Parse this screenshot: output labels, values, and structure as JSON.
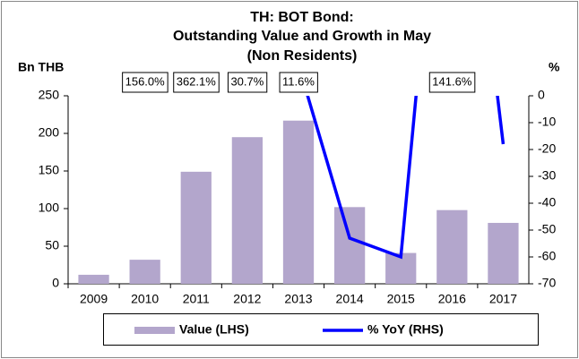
{
  "chart_data": {
    "type": "bar_line",
    "title": [
      "TH: BOT Bond:",
      "Outstanding Value and Growth in May",
      "(Non Residents)"
    ],
    "ylabel": "Bn THB",
    "y2label": "%",
    "categories": [
      "2009",
      "2010",
      "2011",
      "2012",
      "2013",
      "2014",
      "2015",
      "2016",
      "2017"
    ],
    "series": [
      {
        "name": "Value (LHS)",
        "color": "#b3a6cc",
        "kind": "bar",
        "values": [
          12,
          32,
          149,
          195,
          217,
          102,
          41,
          98,
          81
        ]
      },
      {
        "name": "% YoY (RHS)",
        "color": "#0000ff",
        "kind": "line",
        "axis": "y2",
        "values": [
          null,
          156.0,
          362.1,
          30.7,
          11.6,
          -53,
          -60,
          141.6,
          -18
        ],
        "value_labels": [
          null,
          "156.0%",
          "362.1%",
          "30.7%",
          "11.6%",
          null,
          null,
          "141.6%",
          null
        ]
      }
    ],
    "ylim": [
      0,
      250
    ],
    "yticks": [
      0,
      50,
      100,
      150,
      200,
      250
    ],
    "y2lim": [
      -70,
      0
    ],
    "y2ticks": [
      0,
      -10,
      -20,
      -30,
      -40,
      -50,
      -60,
      -70
    ],
    "grid": false
  }
}
